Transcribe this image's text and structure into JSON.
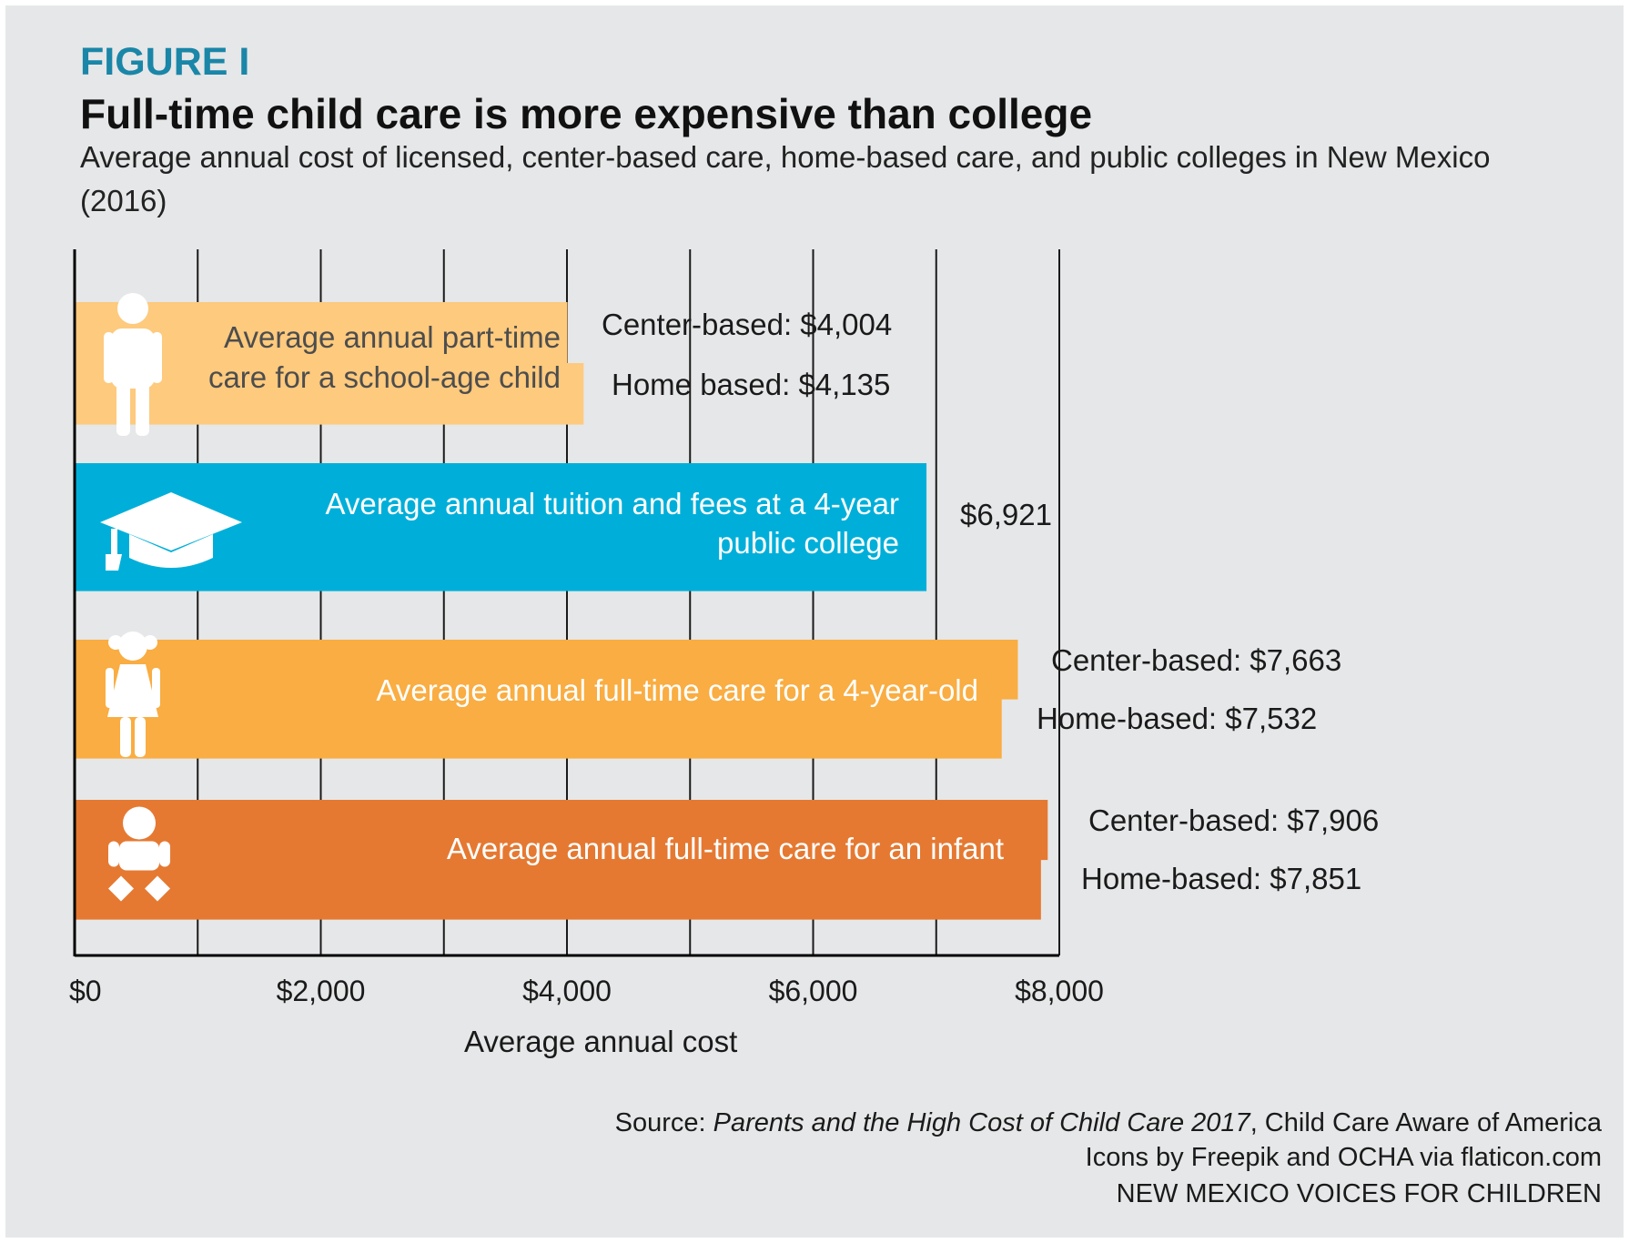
{
  "figure_label": "FIGURE I",
  "source": {
    "prefix": "Source: ",
    "title": "Parents and the High Cost of Child Care 2017",
    "suffix": ", Child Care Aware of America",
    "icons_credit": "Icons by Freepik and OCHA via flaticon.com",
    "organization": "NEW MEXICO VOICES FOR CHILDREN"
  },
  "chart_data": {
    "type": "bar",
    "orientation": "horizontal",
    "title": "Full-time child care is more expensive than college",
    "subtitle": [
      "Average annual cost of licensed, center-based care, home-based care, and public colleges in New Mexico",
      "(2016)"
    ],
    "xlabel": "Average annual cost",
    "xlim": [
      0,
      8000
    ],
    "xticks": [
      0,
      2000,
      4000,
      6000,
      8000
    ],
    "xtick_labels": [
      "$0",
      "$2,000",
      "$4,000",
      "$6,000",
      "$8,000"
    ],
    "grid": true,
    "categories": [
      {
        "id": "school-age",
        "label_lines": [
          "Average annual part-time",
          "care for a school-age child"
        ],
        "icon": "child-icon",
        "color": "#fdca7e",
        "label_color": "#4d4d4d",
        "values": [
          {
            "name": "Center-based",
            "value": 4004,
            "label": "Center-based: $4,004"
          },
          {
            "name": "Home based",
            "value": 4135,
            "label": "Home based: $4,135"
          }
        ]
      },
      {
        "id": "college",
        "label_lines": [
          "Average annual tuition and fees at a 4-year",
          "public college"
        ],
        "icon": "graduation-cap-icon",
        "color": "#00afd9",
        "label_color": "#ffffff",
        "values": [
          {
            "name": "Tuition and fees",
            "value": 6921,
            "label": "$6,921"
          }
        ]
      },
      {
        "id": "four-year-old",
        "label_lines": [
          "Average annual full-time care for a 4-year-old"
        ],
        "icon": "girl-icon",
        "color": "#f9ad42",
        "label_color": "#ffffff",
        "values": [
          {
            "name": "Center-based",
            "value": 7663,
            "label": "Center-based: $7,663"
          },
          {
            "name": "Home-based",
            "value": 7532,
            "label": "Home-based: $7,532"
          }
        ]
      },
      {
        "id": "infant",
        "label_lines": [
          "Average annual full-time care for an infant"
        ],
        "icon": "baby-icon",
        "color": "#e57932",
        "label_color": "#ffffff",
        "values": [
          {
            "name": "Center-based",
            "value": 7906,
            "label": "Center-based: $7,906"
          },
          {
            "name": "Home-based",
            "value": 7851,
            "label": "Home-based: $7,851"
          }
        ]
      }
    ]
  }
}
